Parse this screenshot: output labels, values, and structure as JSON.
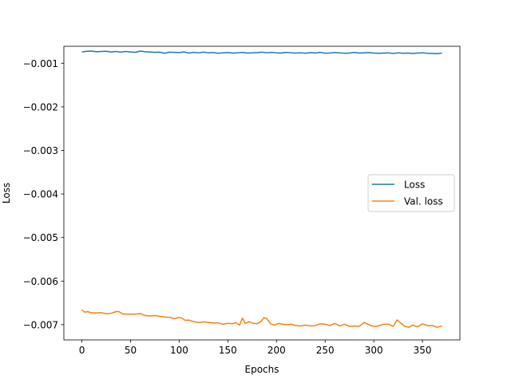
{
  "chart_data": {
    "type": "line",
    "title": "",
    "xlabel": "Epochs",
    "ylabel": "Loss",
    "xlim": [
      -18.5,
      388.5
    ],
    "ylim": [
      -0.00735,
      -0.00061
    ],
    "x_ticks": [
      0,
      50,
      100,
      150,
      200,
      250,
      300,
      350
    ],
    "x_tick_labels": [
      "0",
      "50",
      "100",
      "150",
      "200",
      "250",
      "300",
      "350"
    ],
    "y_ticks": [
      -0.001,
      -0.002,
      -0.003,
      -0.004,
      -0.005,
      -0.006,
      -0.007
    ],
    "y_tick_labels": [
      "−0.001",
      "−0.002",
      "−0.003",
      "−0.004",
      "−0.005",
      "−0.006",
      "−0.007"
    ],
    "grid": false,
    "legend_position": "center-right",
    "series": [
      {
        "name": "Loss",
        "color": "#1f77b4",
        "x": [
          0,
          5,
          10,
          15,
          20,
          25,
          30,
          35,
          40,
          45,
          50,
          55,
          60,
          65,
          70,
          75,
          80,
          85,
          90,
          95,
          100,
          105,
          110,
          115,
          120,
          125,
          130,
          135,
          140,
          145,
          150,
          155,
          160,
          165,
          170,
          175,
          180,
          185,
          190,
          195,
          200,
          205,
          210,
          215,
          220,
          225,
          230,
          235,
          240,
          245,
          250,
          255,
          260,
          265,
          270,
          275,
          280,
          285,
          290,
          295,
          300,
          305,
          310,
          315,
          320,
          325,
          330,
          335,
          340,
          345,
          350,
          355,
          360,
          365,
          370
        ],
        "y": [
          -0.00074,
          -0.000725,
          -0.00072,
          -0.000735,
          -0.00073,
          -0.000725,
          -0.00074,
          -0.00073,
          -0.000745,
          -0.00073,
          -0.00074,
          -0.00075,
          -0.00072,
          -0.000735,
          -0.00074,
          -0.00075,
          -0.000745,
          -0.00077,
          -0.000745,
          -0.00075,
          -0.000755,
          -0.00074,
          -0.000765,
          -0.00075,
          -0.00076,
          -0.000745,
          -0.00076,
          -0.000755,
          -0.00077,
          -0.00076,
          -0.000755,
          -0.000765,
          -0.00076,
          -0.00075,
          -0.000765,
          -0.00076,
          -0.000755,
          -0.000745,
          -0.00076,
          -0.00075,
          -0.00076,
          -0.000765,
          -0.00075,
          -0.00076,
          -0.000765,
          -0.00076,
          -0.00077,
          -0.000755,
          -0.000765,
          -0.00075,
          -0.00077,
          -0.000765,
          -0.000755,
          -0.00076,
          -0.00077,
          -0.000765,
          -0.00075,
          -0.000765,
          -0.00076,
          -0.000755,
          -0.000765,
          -0.00077,
          -0.000765,
          -0.00076,
          -0.000775,
          -0.00076,
          -0.00077,
          -0.000765,
          -0.000775,
          -0.000765,
          -0.00076,
          -0.00077,
          -0.000775,
          -0.00078,
          -0.000765
        ]
      },
      {
        "name": "Val. loss",
        "color": "#ff7f0e",
        "x": [
          0,
          3,
          6,
          10,
          15,
          20,
          25,
          30,
          35,
          38,
          42,
          45,
          50,
          55,
          60,
          65,
          70,
          75,
          80,
          85,
          90,
          95,
          100,
          103,
          106,
          110,
          115,
          120,
          125,
          130,
          135,
          140,
          145,
          150,
          155,
          158,
          162,
          165,
          168,
          172,
          176,
          180,
          184,
          187,
          190,
          194,
          198,
          202,
          206,
          210,
          215,
          220,
          225,
          230,
          235,
          240,
          245,
          250,
          255,
          260,
          265,
          270,
          275,
          280,
          285,
          290,
          294,
          298,
          302,
          306,
          310,
          315,
          320,
          324,
          328,
          332,
          336,
          340,
          345,
          350,
          355,
          360,
          365,
          370
        ],
        "y": [
          -0.00666,
          -0.006715,
          -0.0067,
          -0.00673,
          -0.00673,
          -0.006725,
          -0.00675,
          -0.00674,
          -0.0067,
          -0.0067,
          -0.006755,
          -0.006755,
          -0.00676,
          -0.00676,
          -0.006745,
          -0.00679,
          -0.0068,
          -0.00679,
          -0.00681,
          -0.006825,
          -0.00683,
          -0.00686,
          -0.006835,
          -0.00685,
          -0.0069,
          -0.006895,
          -0.00693,
          -0.00695,
          -0.006935,
          -0.00695,
          -0.00696,
          -0.00696,
          -0.00699,
          -0.00697,
          -0.00698,
          -0.00695,
          -0.00701,
          -0.00685,
          -0.00697,
          -0.00693,
          -0.00697,
          -0.00698,
          -0.00693,
          -0.00684,
          -0.00686,
          -0.00698,
          -0.00701,
          -0.00697,
          -0.00699,
          -0.007,
          -0.00699,
          -0.00702,
          -0.00703,
          -0.00701,
          -0.00703,
          -0.00702,
          -0.00698,
          -0.00699,
          -0.00702,
          -0.00697,
          -0.00703,
          -0.00699,
          -0.00704,
          -0.00703,
          -0.00704,
          -0.00695,
          -0.00699,
          -0.00703,
          -0.00704,
          -0.00702,
          -0.00699,
          -0.00699,
          -0.00704,
          -0.00689,
          -0.00697,
          -0.00704,
          -0.00706,
          -0.00701,
          -0.00705,
          -0.00698,
          -0.00702,
          -0.00702,
          -0.00706,
          -0.00703
        ]
      }
    ]
  }
}
